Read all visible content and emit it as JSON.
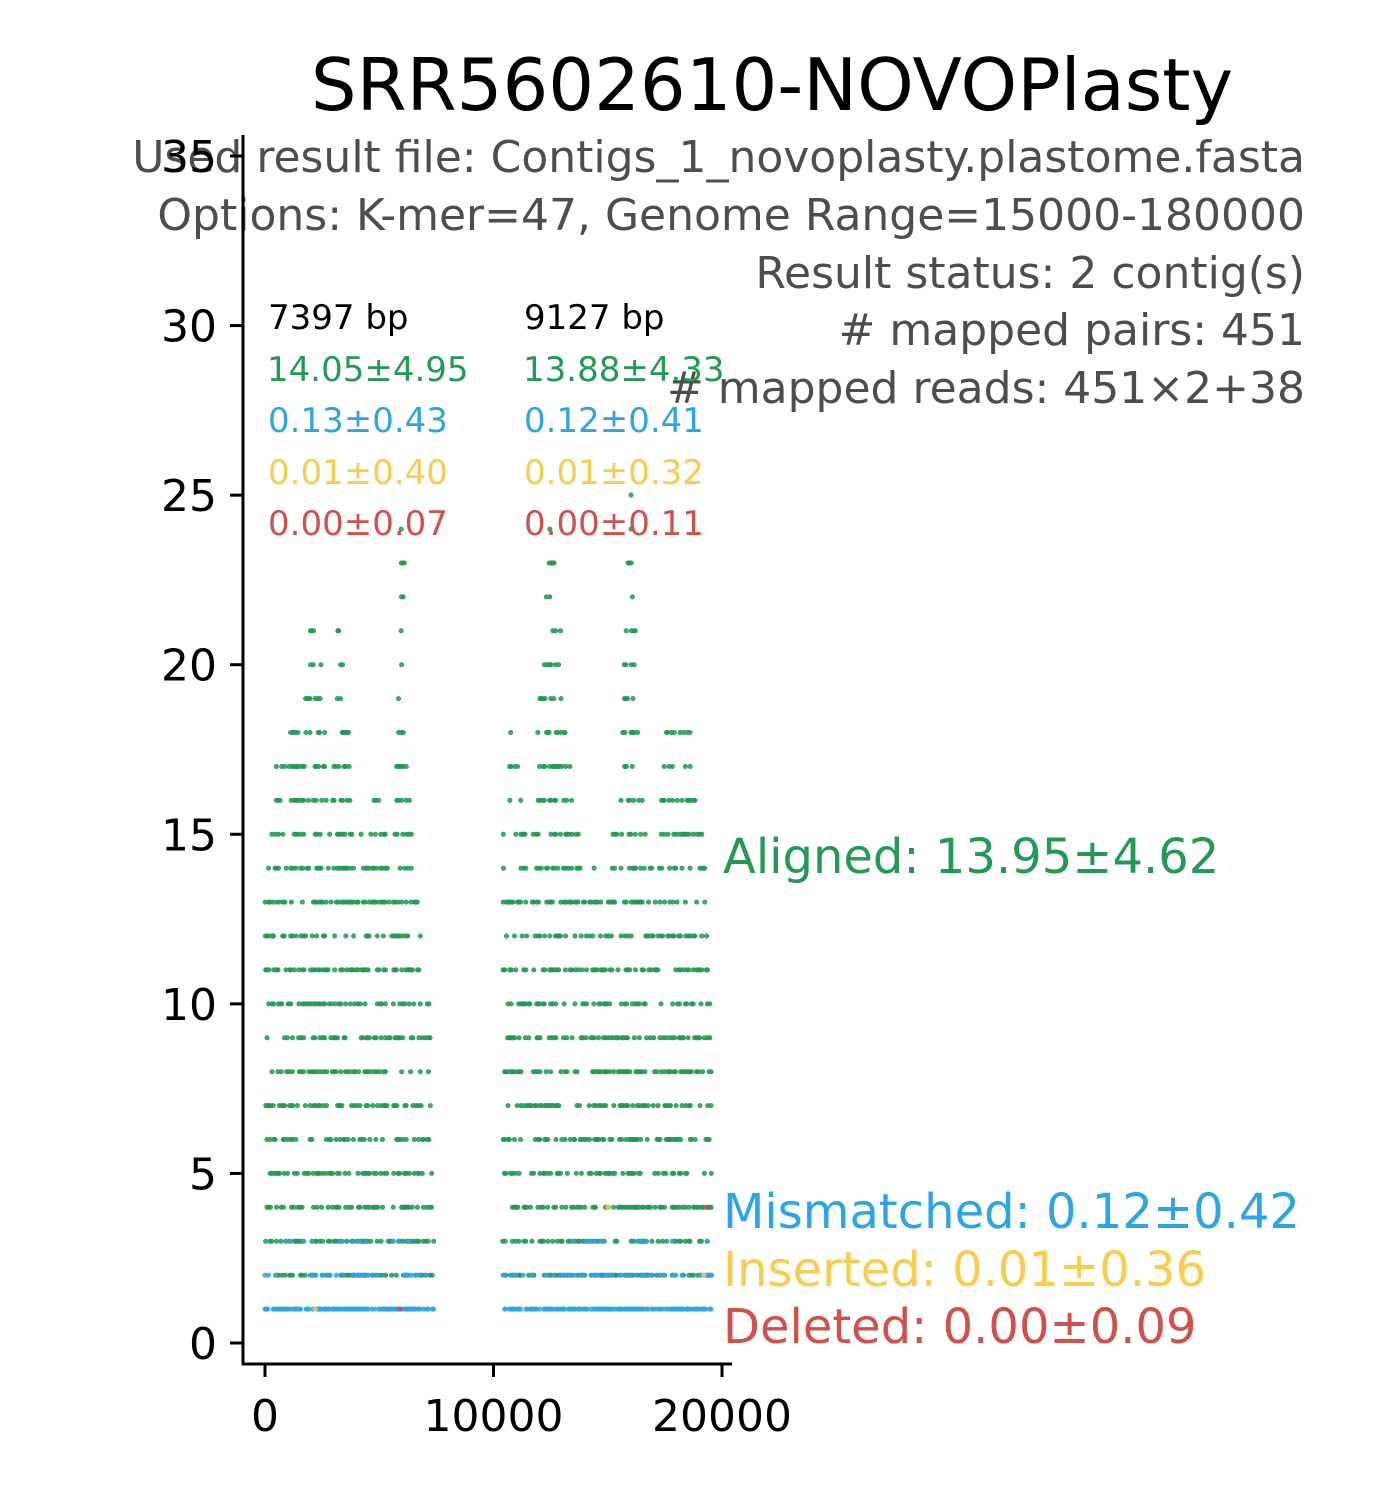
{
  "chart_data": {
    "type": "scatter",
    "title": "SRR5602610-NOVOPlasty",
    "info_lines": [
      "Used result file: Contigs_1_novoplasty.plastome.fasta",
      "Options: K-mer=47, Genome Range=15000-180000",
      "Result status: 2 contig(s)",
      "# mapped pairs: 451",
      "# mapped reads: 451×2+38"
    ],
    "xlim": [
      -1000,
      20500
    ],
    "ylim": [
      -1,
      36
    ],
    "x_ticks": [
      0,
      10000,
      20000
    ],
    "x_tick_labels": [
      "0",
      "10000",
      "20000"
    ],
    "y_ticks": [
      0,
      5,
      10,
      15,
      20,
      25,
      30,
      35
    ],
    "y_tick_labels": [
      "0",
      "5",
      "10",
      "15",
      "20",
      "25",
      "30",
      "35"
    ],
    "grid": false,
    "colors": {
      "aligned": "#229954",
      "mismatched": "#2ca4e8",
      "inserted": "#f8cc4d",
      "deleted": "#d0504a",
      "axis": "#000000",
      "info": "#4d4d4d"
    },
    "contigs": [
      {
        "x_start": 0,
        "x_end": 7397,
        "length_label": "7397 bp",
        "stats": {
          "aligned": "14.05±4.95",
          "mismatched": "0.13±0.43",
          "inserted": "0.01±0.40",
          "deleted": "0.00±0.07"
        }
      },
      {
        "x_start": 10397,
        "x_end": 19524,
        "length_label": "9127 bp",
        "stats": {
          "aligned": "13.88±4.33",
          "mismatched": "0.12±0.41",
          "inserted": "0.01±0.32",
          "deleted": "0.00±0.11"
        }
      }
    ],
    "legend": {
      "aligned": "Aligned: 13.95±4.62",
      "mismatched": "Mismatched: 0.12±0.42",
      "inserted": "Inserted: 0.01±0.36",
      "deleted": "Deleted: 0.00±0.09"
    },
    "coverage_profile": {
      "note_x_unit": "bp",
      "contig_1": [
        [
          0,
          14
        ],
        [
          400,
          16
        ],
        [
          800,
          19
        ],
        [
          1200,
          18
        ],
        [
          1600,
          17
        ],
        [
          2000,
          21
        ],
        [
          2400,
          20
        ],
        [
          2800,
          16
        ],
        [
          3200,
          22
        ],
        [
          3600,
          18
        ],
        [
          4000,
          15
        ],
        [
          4400,
          14
        ],
        [
          4800,
          16
        ],
        [
          5200,
          15
        ],
        [
          5600,
          13
        ],
        [
          6000,
          25
        ],
        [
          6400,
          14
        ],
        [
          6800,
          12
        ],
        [
          7200,
          10
        ],
        [
          7397,
          5
        ]
      ],
      "contig_2": [
        [
          10397,
          15
        ],
        [
          10800,
          18
        ],
        [
          11200,
          16
        ],
        [
          11600,
          14
        ],
        [
          12000,
          19
        ],
        [
          12400,
          24
        ],
        [
          12800,
          23
        ],
        [
          13200,
          17
        ],
        [
          13600,
          16
        ],
        [
          14000,
          13
        ],
        [
          14400,
          14
        ],
        [
          14800,
          12
        ],
        [
          15200,
          15
        ],
        [
          15600,
          17
        ],
        [
          16000,
          26
        ],
        [
          16400,
          16
        ],
        [
          16800,
          14
        ],
        [
          17200,
          15
        ],
        [
          17600,
          18
        ],
        [
          18000,
          20
        ],
        [
          18400,
          19
        ],
        [
          18800,
          17
        ],
        [
          19200,
          14
        ],
        [
          19524,
          8
        ]
      ],
      "mismatch_positions": [
        [
          0,
          1
        ],
        [
          600,
          1
        ],
        [
          1400,
          1
        ],
        [
          2100,
          2
        ],
        [
          3300,
          1
        ],
        [
          4100,
          2
        ],
        [
          5200,
          1
        ],
        [
          5800,
          1
        ],
        [
          6600,
          2
        ],
        [
          7100,
          1
        ],
        [
          10500,
          1
        ],
        [
          11300,
          2
        ],
        [
          12200,
          1
        ],
        [
          13000,
          1
        ],
        [
          13900,
          2
        ],
        [
          14700,
          1
        ],
        [
          15600,
          1
        ],
        [
          16500,
          2
        ],
        [
          17400,
          1
        ],
        [
          18300,
          1
        ],
        [
          19100,
          2
        ]
      ],
      "insert_positions": [
        [
          2200,
          1
        ],
        [
          15000,
          4
        ],
        [
          19200,
          2
        ]
      ],
      "delete_positions": [
        [
          5900,
          1
        ],
        [
          19300,
          4
        ]
      ]
    }
  }
}
